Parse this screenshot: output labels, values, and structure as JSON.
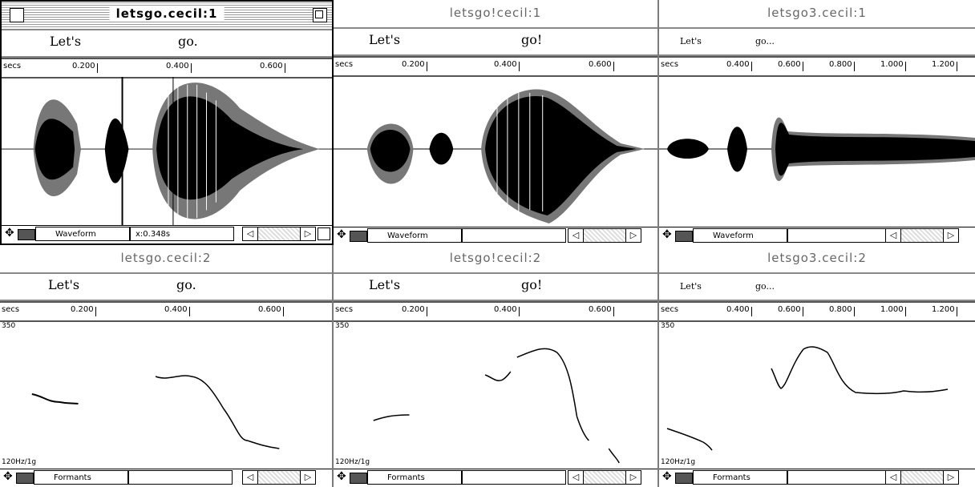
{
  "windows": [
    {
      "id": "w1",
      "title": "letsgo.cecil:1",
      "active": true,
      "labels": [
        "Let's",
        "go."
      ],
      "ruler_unit": "secs",
      "ticks": [
        "0.200",
        "0.400",
        "0.600"
      ],
      "view": "Waveform",
      "cursor": "x:0.348s"
    },
    {
      "id": "w2",
      "title": "letsgo!cecil:1",
      "labels": [
        "Let's",
        "go!"
      ],
      "ruler_unit": "secs",
      "ticks": [
        "0.200",
        "0.400",
        "0.600"
      ],
      "view": "Waveform",
      "cursor": ""
    },
    {
      "id": "w3",
      "title": "letsgo3.cecil:1",
      "labels": [
        "Let's",
        "go..."
      ],
      "ruler_unit": "secs",
      "ticks": [
        "0.400",
        "0.600",
        "0.800",
        "1.000",
        "1.200"
      ],
      "view": "Waveform",
      "cursor": ""
    },
    {
      "id": "w4",
      "title": "letsgo.cecil:2",
      "labels": [
        "Let's",
        "go."
      ],
      "ruler_unit": "secs",
      "ticks": [
        "0.200",
        "0.400",
        "0.600"
      ],
      "view": "Formants",
      "cursor": "",
      "y_top": "350",
      "y_bottom": "120Hz/1g"
    },
    {
      "id": "w5",
      "title": "letsgo!cecil:2",
      "labels": [
        "Let's",
        "go!"
      ],
      "ruler_unit": "secs",
      "ticks": [
        "0.200",
        "0.400",
        "0.600"
      ],
      "view": "Formants",
      "cursor": "",
      "y_top": "350",
      "y_bottom": "120Hz/1g"
    },
    {
      "id": "w6",
      "title": "letsgo3.cecil:2",
      "labels": [
        "Let's",
        "go..."
      ],
      "ruler_unit": "secs",
      "ticks": [
        "0.400",
        "0.600",
        "0.800",
        "1.000",
        "1.200"
      ],
      "view": "Formants",
      "cursor": "",
      "y_top": "350",
      "y_bottom": "120Hz/1g"
    }
  ],
  "icons": {
    "close": "close-box-icon",
    "zoom": "zoom-box-icon",
    "tool": "hand-tool-icon",
    "left": "scroll-left-icon",
    "right": "scroll-right-icon"
  }
}
